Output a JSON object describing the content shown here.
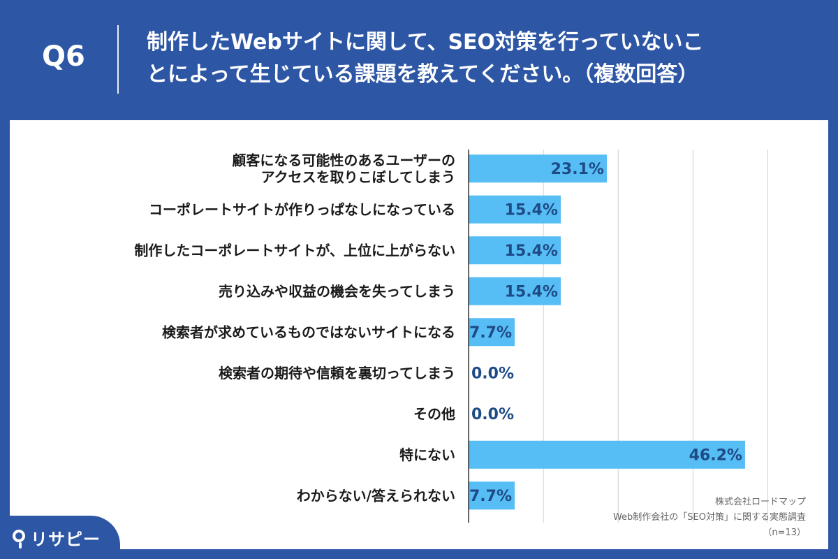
{
  "header": {
    "q_number": "Q6",
    "question_line1": "制作したWebサイトに関して、SEO対策を行っていないこ",
    "question_line2": "とによって生じている課題を教えてください。（複数回答）"
  },
  "source": {
    "company": "株式会社ロードマップ",
    "survey": "Web制作会社の「SEO対策」に関する実態調査",
    "n": "（n=13）"
  },
  "logo": {
    "text": "リサピー",
    "icon": "pin-icon"
  },
  "colors": {
    "header_bg": "#2d56a5",
    "bar": "#57bdf5",
    "value_text": "#1e4a85",
    "grid": "#cfcfcf"
  },
  "chart_data": {
    "type": "bar",
    "orientation": "horizontal",
    "title": "",
    "xlabel": "",
    "ylabel": "",
    "xlim": [
      0,
      50
    ],
    "grid": true,
    "legend": "none",
    "categories": [
      [
        "顧客になる可能性のあるユーザーの",
        "アクセスを取りこぼしてしまう"
      ],
      [
        "コーポレートサイトが作りっぱなしになっている"
      ],
      [
        "制作したコーポレートサイトが、上位に上がらない"
      ],
      [
        "売り込みや収益の機会を失ってしまう"
      ],
      [
        "検索者が求めているものではないサイトになる"
      ],
      [
        "検索者の期待や信頼を裏切ってしまう"
      ],
      [
        "その他"
      ],
      [
        "特にない"
      ],
      [
        "わからない/答えられない"
      ]
    ],
    "values": [
      23.1,
      15.4,
      15.4,
      15.4,
      7.7,
      0.0,
      0.0,
      46.2,
      7.7
    ],
    "value_labels": [
      "23.1%",
      "15.4%",
      "15.4%",
      "15.4%",
      "7.7%",
      "0.0%",
      "0.0%",
      "46.2%",
      "7.7%"
    ]
  }
}
